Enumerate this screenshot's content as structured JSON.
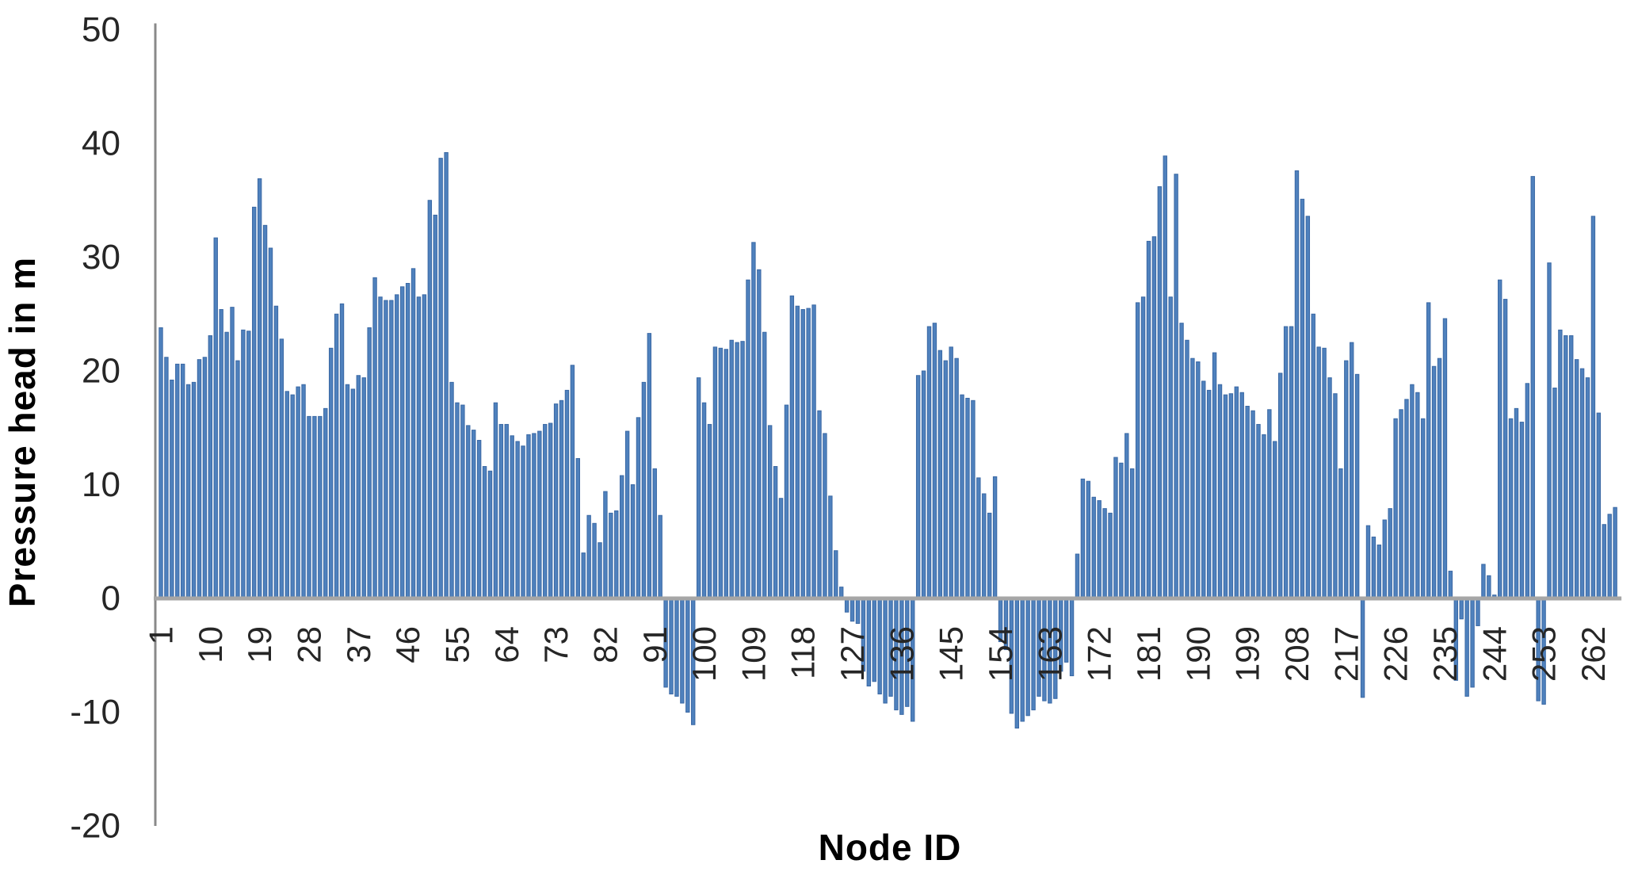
{
  "chart_data": {
    "type": "bar",
    "title": "",
    "xlabel": "Node ID",
    "ylabel": "Pressure head in m",
    "ylim": [
      -20,
      50
    ],
    "y_ticks": [
      50,
      40,
      30,
      20,
      10,
      0,
      -10,
      -20
    ],
    "x_start": 1,
    "x_tick_step": 9,
    "x_tick_labels": [
      "1",
      "10",
      "19",
      "28",
      "37",
      "46",
      "55",
      "64",
      "73",
      "82",
      "91",
      "100",
      "109",
      "118",
      "127",
      "136",
      "145",
      "154",
      "163",
      "172",
      "181",
      "190",
      "199",
      "208",
      "217",
      "226",
      "235",
      "244",
      "253",
      "262"
    ],
    "grid": "off",
    "legend": "none",
    "bar_color": "#4f81bd",
    "bar_edge_color": "#3a68a4",
    "axis_line_color": "#a6a6a6",
    "y_axis_line_color": "#898989",
    "text_color": "#262626",
    "background_color": "#ffffff",
    "values": [
      23.8,
      21.2,
      19.2,
      20.6,
      20.6,
      18.8,
      19.0,
      21.0,
      21.2,
      23.1,
      31.7,
      25.4,
      23.4,
      25.6,
      20.9,
      23.6,
      23.5,
      34.4,
      36.9,
      32.8,
      30.8,
      25.7,
      22.8,
      18.2,
      17.9,
      18.6,
      18.8,
      16.0,
      16.0,
      16.0,
      16.7,
      22.0,
      25.0,
      25.9,
      18.8,
      18.4,
      19.6,
      19.4,
      23.8,
      28.2,
      26.5,
      26.2,
      26.2,
      26.7,
      27.4,
      27.7,
      29.0,
      26.5,
      26.7,
      35.0,
      33.7,
      38.7,
      39.2,
      19.0,
      17.2,
      17.0,
      15.2,
      14.8,
      13.9,
      11.6,
      11.2,
      17.2,
      15.3,
      15.3,
      14.3,
      13.8,
      13.4,
      14.4,
      14.5,
      14.7,
      15.3,
      15.4,
      17.1,
      17.4,
      18.3,
      20.5,
      12.3,
      4.0,
      7.3,
      6.6,
      4.9,
      9.4,
      7.5,
      7.7,
      10.8,
      14.7,
      10.0,
      15.9,
      19.0,
      23.3,
      11.4,
      7.3,
      -7.8,
      -8.4,
      -8.6,
      -9.2,
      -10.0,
      -11.1,
      19.4,
      17.2,
      15.3,
      22.1,
      22.0,
      21.9,
      22.7,
      22.5,
      22.6,
      28.0,
      31.3,
      28.9,
      23.4,
      15.2,
      11.6,
      8.8,
      17.0,
      26.6,
      25.7,
      25.4,
      25.5,
      25.8,
      16.5,
      14.5,
      9.0,
      4.2,
      1.0,
      -1.2,
      -2.0,
      -2.2,
      -6.4,
      -7.7,
      -7.3,
      -8.4,
      -9.2,
      -8.6,
      -9.8,
      -10.2,
      -9.5,
      -10.8,
      19.6,
      20.0,
      23.9,
      24.2,
      21.8,
      20.9,
      22.1,
      21.1,
      17.9,
      17.6,
      17.4,
      10.6,
      9.2,
      7.5,
      10.7,
      -3.8,
      -4.5,
      -10.1,
      -11.4,
      -10.8,
      -10.3,
      -9.8,
      -8.6,
      -9.0,
      -9.2,
      -8.8,
      -6.4,
      -5.6,
      -6.8,
      3.9,
      10.5,
      10.3,
      8.9,
      8.6,
      7.9,
      7.5,
      12.4,
      11.9,
      14.5,
      11.4,
      26.0,
      26.5,
      31.4,
      31.8,
      36.2,
      38.9,
      26.5,
      37.3,
      24.2,
      22.7,
      21.1,
      20.8,
      19.1,
      18.3,
      21.6,
      18.8,
      17.9,
      18.0,
      18.6,
      18.1,
      16.9,
      16.5,
      15.3,
      14.4,
      16.6,
      13.8,
      19.8,
      23.9,
      23.9,
      37.6,
      35.1,
      33.6,
      25.0,
      22.1,
      22.0,
      19.4,
      18.0,
      11.4,
      20.9,
      22.5,
      19.7,
      -8.7,
      6.4,
      5.4,
      4.7,
      6.9,
      7.9,
      15.8,
      16.6,
      17.5,
      18.8,
      18.1,
      15.8,
      26.0,
      20.4,
      21.1,
      24.6,
      2.4,
      -7.2,
      -1.8,
      -8.6,
      -7.8,
      -2.4,
      3.0,
      2.0,
      0.3,
      28.0,
      26.3,
      15.8,
      16.7,
      15.5,
      18.9,
      37.1,
      -9.0,
      -9.3,
      29.5,
      18.5,
      23.6,
      23.1,
      23.1,
      21.0,
      20.2,
      19.4,
      33.6,
      16.3,
      6.5,
      7.4,
      8.0
    ]
  }
}
